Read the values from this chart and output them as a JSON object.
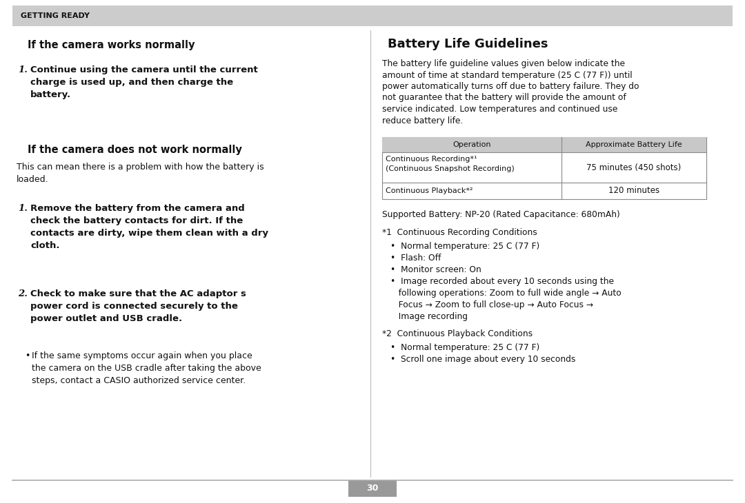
{
  "page_number": "30",
  "header_text": "GETTING READY",
  "header_bg": "#cccccc",
  "bg_color": "#ffffff",
  "left_col": {
    "title": "If the camera works normally",
    "s1_num": "1.",
    "s1_text": "Continue using the camera until the current\ncharge is used up, and then charge the\nbattery.",
    "s2_title": "If the camera does not work normally",
    "s2_body": "This can mean there is a problem with how the battery is\nloaded.",
    "s3_num": "1.",
    "s3_text": "Remove the battery from the camera and\ncheck the battery contacts for dirt. If the\ncontacts are dirty, wipe them clean with a dry\ncloth.",
    "s4_num": "2.",
    "s4_text": "Check to make sure that the AC adaptor s\npower cord is connected securely to the\npower outlet and USB cradle.",
    "bullet_text": "If the same symptoms occur again when you place\nthe camera on the USB cradle after taking the above\nsteps, contact a CASIO authorized service center."
  },
  "right_col": {
    "title": "Battery Life Guidelines",
    "intro_lines": [
      "The battery life guideline values given below indicate the",
      "amount of time at standard temperature (25 C (77 F)) until",
      "power automatically turns off due to battery failure. They do",
      "not guarantee that the battery will provide the amount of",
      "service indicated. Low temperatures and continued use",
      "reduce battery life."
    ],
    "table_header_bg": "#c8c8c8",
    "table_col1_header": "Operation",
    "table_col2_header": "Approximate Battery Life",
    "table_row1_col1a": "Continuous Recording*¹",
    "table_row1_col1b": "(Continuous Snapshot Recording)",
    "table_row1_col2": "75 minutes (450 shots)",
    "table_row2_col1": "Continuous Playback*²",
    "table_row2_col2": "120 minutes",
    "supported_battery": "Supported Battery: NP-20 (Rated Capacitance: 680mAh)",
    "fn1_title": "*1  Continuous Recording Conditions",
    "fn1_b1": "•  Normal temperature: 25 C (77 F)",
    "fn1_b2": "•  Flash: Off",
    "fn1_b3": "•  Monitor screen: On",
    "fn1_b4a": "•  Image recorded about every 10 seconds using the",
    "fn1_b4b": "   following operations: Zoom to full wide angle → Auto",
    "fn1_b4c": "   Focus → Zoom to full close-up → Auto Focus →",
    "fn1_b4d": "   Image recording",
    "fn2_title": "*2  Continuous Playback Conditions",
    "fn2_b1": "•  Normal temperature: 25 C (77 F)",
    "fn2_b2": "•  Scroll one image about every 10 seconds"
  }
}
